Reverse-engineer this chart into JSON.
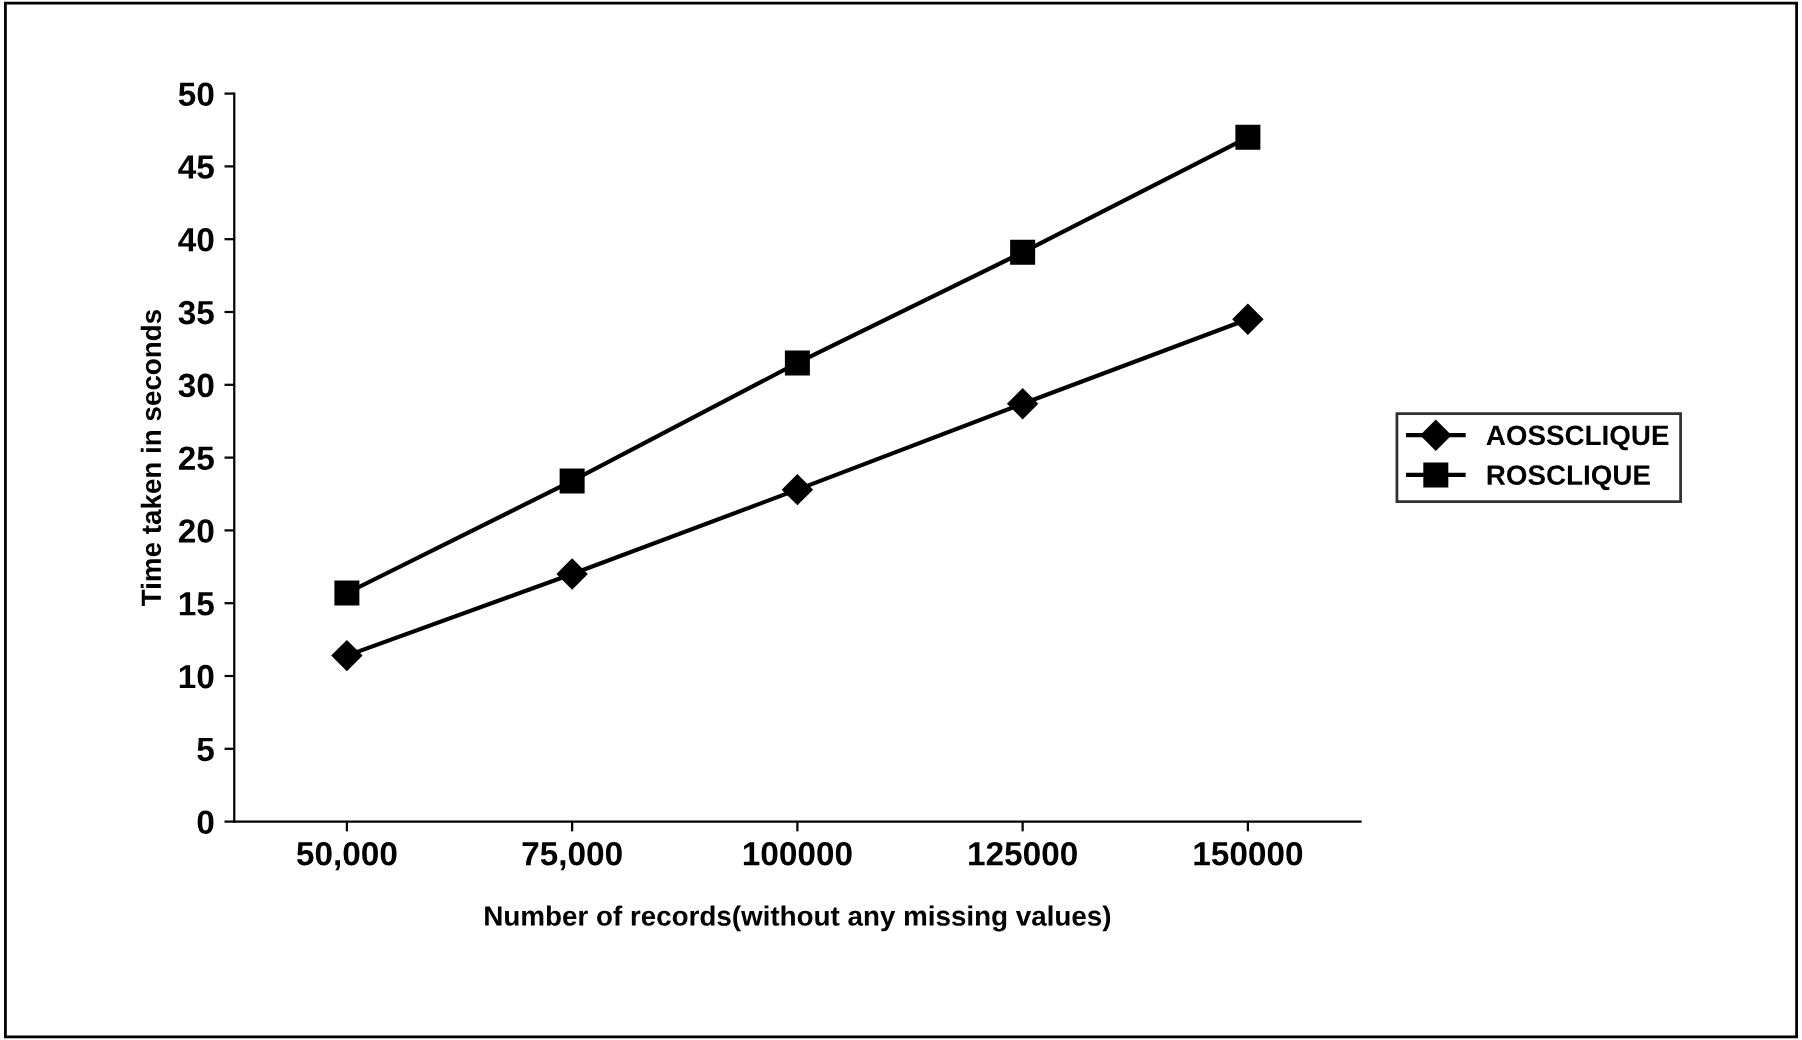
{
  "chart_data": {
    "type": "line",
    "xlabel": "Number of records(without any missing values)",
    "ylabel": "Time taken in seconds",
    "categories": [
      "50,000",
      "75,000",
      "100000",
      "125000",
      "150000"
    ],
    "series": [
      {
        "name": "AOSSCLIQUE",
        "color": "#000000",
        "marker": "diamond",
        "values": [
          11.4,
          17.0,
          22.8,
          28.7,
          34.5
        ]
      },
      {
        "name": "ROSCLIQUE",
        "color": "#000000",
        "marker": "square",
        "values": [
          15.7,
          23.4,
          31.5,
          39.1,
          47.0
        ]
      }
    ],
    "ylim": [
      0,
      50
    ],
    "yticks": [
      0,
      5,
      10,
      15,
      20,
      25,
      30,
      35,
      40,
      45,
      50
    ],
    "grid": false,
    "legend": "right",
    "line_style": "solid"
  }
}
